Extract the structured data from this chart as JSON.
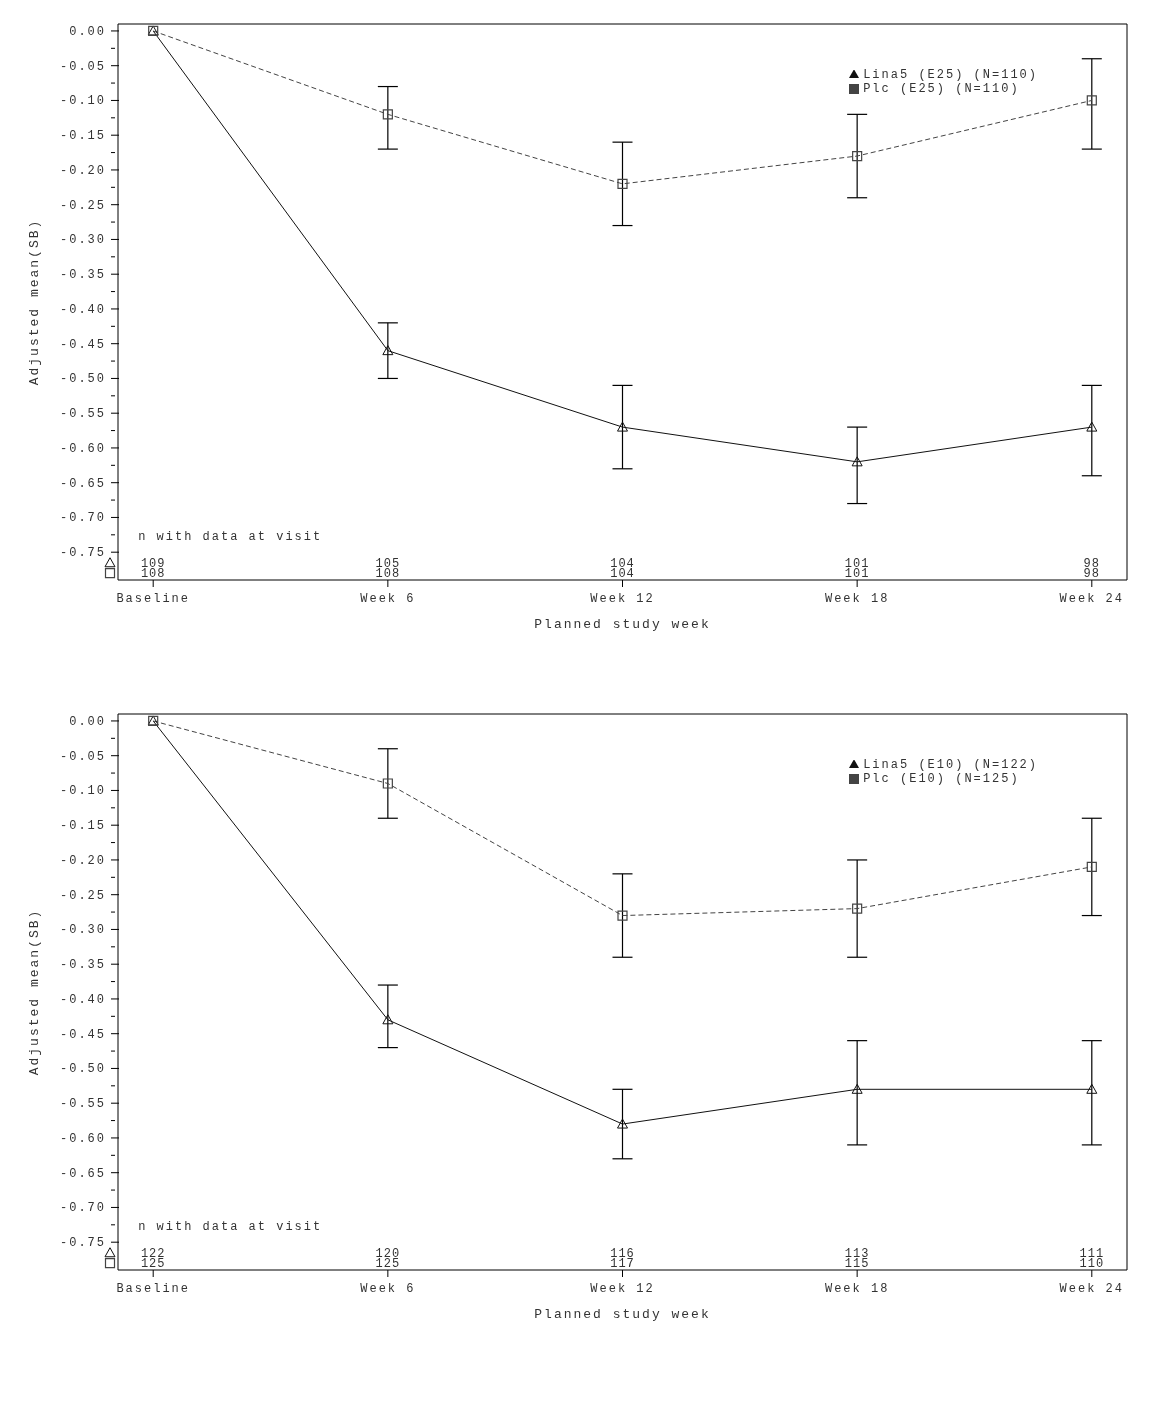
{
  "chart_data": [
    {
      "type": "line",
      "xlabel": "Planned study week",
      "ylabel": "Adjusted mean(SB)",
      "categories": [
        "Baseline",
        "Week 6",
        "Week 12",
        "Week 18",
        "Week 24"
      ],
      "series": [
        {
          "name": "Lina5 (E25) (N=110)",
          "color": "#111111",
          "marker": "triangle",
          "line_style": "solid",
          "values": [
            0,
            -0.46,
            -0.57,
            -0.62,
            -0.57
          ],
          "errors": [
            null,
            [
              -0.5,
              -0.42
            ],
            [
              -0.63,
              -0.51
            ],
            [
              -0.68,
              -0.57
            ],
            [
              -0.64,
              -0.51
            ]
          ]
        },
        {
          "name": "Plc (E25) (N=110)",
          "color": "#444444",
          "marker": "square",
          "line_style": "dashed",
          "values": [
            0,
            -0.12,
            -0.22,
            -0.18,
            -0.1
          ],
          "errors": [
            null,
            [
              -0.17,
              -0.08
            ],
            [
              -0.28,
              -0.16
            ],
            [
              -0.24,
              -0.12
            ],
            [
              -0.17,
              -0.04
            ]
          ]
        }
      ],
      "ylim": [
        -0.79,
        0.01
      ],
      "yticks": [
        {
          "value": 0,
          "label": "0.00"
        },
        {
          "value": -0.025,
          "label": null
        },
        {
          "value": -0.05,
          "label": "-0.05"
        },
        {
          "value": -0.075,
          "label": null
        },
        {
          "value": -0.1,
          "label": "-0.10"
        },
        {
          "value": -0.125,
          "label": null
        },
        {
          "value": -0.15,
          "label": "-0.15"
        },
        {
          "value": -0.175,
          "label": null
        },
        {
          "value": -0.2,
          "label": "-0.20"
        },
        {
          "value": -0.225,
          "label": null
        },
        {
          "value": -0.25,
          "label": "-0.25"
        },
        {
          "value": -0.275,
          "label": null
        },
        {
          "value": -0.3,
          "label": "-0.30"
        },
        {
          "value": -0.325,
          "label": null
        },
        {
          "value": -0.35,
          "label": "-0.35"
        },
        {
          "value": -0.375,
          "label": null
        },
        {
          "value": -0.4,
          "label": "-0.40"
        },
        {
          "value": -0.425,
          "label": null
        },
        {
          "value": -0.45,
          "label": "-0.45"
        },
        {
          "value": -0.475,
          "label": null
        },
        {
          "value": -0.5,
          "label": "-0.50"
        },
        {
          "value": -0.525,
          "label": null
        },
        {
          "value": -0.55,
          "label": "-0.55"
        },
        {
          "value": -0.575,
          "label": null
        },
        {
          "value": -0.6,
          "label": "-0.60"
        },
        {
          "value": -0.625,
          "label": null
        },
        {
          "value": -0.65,
          "label": "-0.65"
        },
        {
          "value": -0.675,
          "label": null
        },
        {
          "value": -0.7,
          "label": "-0.70"
        },
        {
          "value": -0.725,
          "label": null
        },
        {
          "value": -0.75,
          "label": "-0.75"
        }
      ],
      "legend": "top right",
      "grid": false,
      "annotations": [
        "n with data at visit",
        "109",
        "105",
        "104",
        "101",
        "98",
        "108",
        "108",
        "104",
        "101",
        "98"
      ]
    },
    {
      "type": "line",
      "xlabel": "Planned study week",
      "ylabel": "Adjusted mean(SB)",
      "categories": [
        "Baseline",
        "Week 6",
        "Week 12",
        "Week 18",
        "Week 24"
      ],
      "series": [
        {
          "name": "Lina5 (E10) (N=122)",
          "color": "#111111",
          "marker": "triangle",
          "line_style": "solid",
          "values": [
            0,
            -0.43,
            -0.58,
            -0.53,
            -0.53
          ],
          "errors": [
            null,
            [
              -0.47,
              -0.38
            ],
            [
              -0.63,
              -0.53
            ],
            [
              -0.61,
              -0.46
            ],
            [
              -0.61,
              -0.46
            ]
          ]
        },
        {
          "name": "Plc (E10) (N=125)",
          "color": "#444444",
          "marker": "square",
          "line_style": "dashed",
          "values": [
            0,
            -0.09,
            -0.28,
            -0.27,
            -0.21
          ],
          "errors": [
            null,
            [
              -0.14,
              -0.04
            ],
            [
              -0.34,
              -0.22
            ],
            [
              -0.34,
              -0.2
            ],
            [
              -0.28,
              -0.14
            ]
          ]
        }
      ],
      "ylim": [
        -0.79,
        0.01
      ],
      "yticks": [
        {
          "value": 0,
          "label": "0.00"
        },
        {
          "value": -0.025,
          "label": null
        },
        {
          "value": -0.05,
          "label": "-0.05"
        },
        {
          "value": -0.075,
          "label": null
        },
        {
          "value": -0.1,
          "label": "-0.10"
        },
        {
          "value": -0.125,
          "label": null
        },
        {
          "value": -0.15,
          "label": "-0.15"
        },
        {
          "value": -0.175,
          "label": null
        },
        {
          "value": -0.2,
          "label": "-0.20"
        },
        {
          "value": -0.225,
          "label": null
        },
        {
          "value": -0.25,
          "label": "-0.25"
        },
        {
          "value": -0.275,
          "label": null
        },
        {
          "value": -0.3,
          "label": "-0.30"
        },
        {
          "value": -0.325,
          "label": null
        },
        {
          "value": -0.35,
          "label": "-0.35"
        },
        {
          "value": -0.375,
          "label": null
        },
        {
          "value": -0.4,
          "label": "-0.40"
        },
        {
          "value": -0.425,
          "label": null
        },
        {
          "value": -0.45,
          "label": "-0.45"
        },
        {
          "value": -0.475,
          "label": null
        },
        {
          "value": -0.5,
          "label": "-0.50"
        },
        {
          "value": -0.525,
          "label": null
        },
        {
          "value": -0.55,
          "label": "-0.55"
        },
        {
          "value": -0.575,
          "label": null
        },
        {
          "value": -0.6,
          "label": "-0.60"
        },
        {
          "value": -0.625,
          "label": null
        },
        {
          "value": -0.65,
          "label": "-0.65"
        },
        {
          "value": -0.675,
          "label": null
        },
        {
          "value": -0.7,
          "label": "-0.70"
        },
        {
          "value": -0.725,
          "label": null
        },
        {
          "value": -0.75,
          "label": "-0.75"
        }
      ],
      "legend": "top right",
      "grid": false,
      "annotations": [
        "n with data at visit",
        "122",
        "120",
        "116",
        "113",
        "111",
        "125",
        "125",
        "117",
        "115",
        "110"
      ]
    }
  ]
}
